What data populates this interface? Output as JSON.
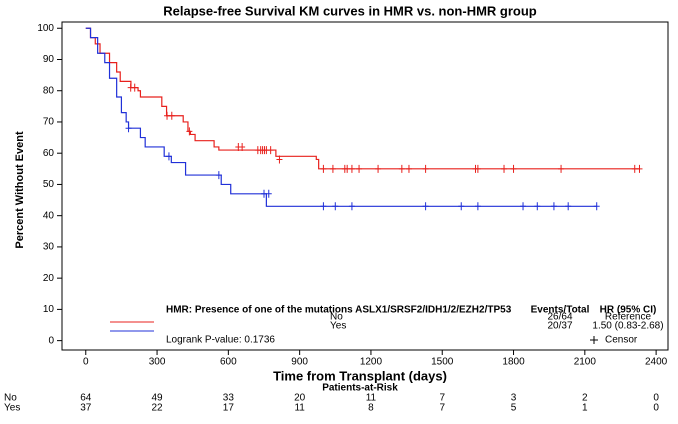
{
  "chart_data": {
    "type": "km",
    "title": "Relapse-free Survival KM curves in HMR vs. non-HMR group",
    "xlabel": "Time from Transplant (days)",
    "ylabel": "Percent Without Event",
    "xlim": [
      -100,
      2450
    ],
    "ylim": [
      -3,
      102
    ],
    "xticks": [
      0,
      300,
      600,
      900,
      1200,
      1500,
      1800,
      2100,
      2400
    ],
    "yticks": [
      0,
      10,
      20,
      30,
      40,
      50,
      60,
      70,
      80,
      90,
      100
    ],
    "legend": {
      "title": "HMR: Presence of one of the mutations ASLX1/SRSF2/IDH1/2/EZH2/TP53",
      "events_header": "Events/Total",
      "hr_header": "HR (95% CI)",
      "pvalue": "Logrank P-value: 0.1736",
      "censor": "Censor"
    },
    "series": [
      {
        "name": "No",
        "color": "#e8201c",
        "events": "26/64",
        "hr": "Reference",
        "x": [
          0,
          20,
          40,
          60,
          100,
          130,
          145,
          190,
          220,
          230,
          320,
          340,
          410,
          430,
          440,
          460,
          540,
          560,
          800,
          970,
          980,
          2330
        ],
        "values": [
          100,
          97,
          95,
          92,
          89,
          86,
          83,
          81,
          80,
          78,
          75,
          72,
          70,
          67,
          66,
          64,
          62,
          61,
          59,
          58,
          55,
          55
        ],
        "censor": {
          "x": [
            189,
            206,
            342,
            362,
            436,
            642,
            658,
            724,
            736,
            744,
            752,
            760,
            778,
            815,
            1000,
            1040,
            1090,
            1100,
            1120,
            1150,
            1230,
            1330,
            1360,
            1430,
            1640,
            1650,
            1760,
            1800,
            2000,
            2310,
            2330
          ],
          "values": [
            81,
            81,
            72,
            72,
            67,
            62,
            62,
            61,
            61,
            61,
            61,
            61,
            61,
            58,
            55,
            55,
            55,
            55,
            55,
            55,
            55,
            55,
            55,
            55,
            55,
            55,
            55,
            55,
            55,
            55,
            55
          ]
        }
      },
      {
        "name": "Yes",
        "color": "#2030d8",
        "events": "20/37",
        "hr": "1.50 (0.83-2.68)",
        "x": [
          0,
          20,
          50,
          80,
          100,
          130,
          150,
          170,
          180,
          230,
          250,
          330,
          360,
          420,
          570,
          610,
          760,
          2150
        ],
        "values": [
          100,
          97,
          92,
          89,
          84,
          78,
          73,
          70,
          68,
          65,
          62,
          59,
          57,
          53,
          50,
          47,
          43,
          43
        ],
        "censor": {
          "x": [
            180,
            350,
            560,
            750,
            770,
            1000,
            1050,
            1120,
            1430,
            1580,
            1650,
            1840,
            1900,
            1970,
            2030,
            2150
          ],
          "values": [
            68,
            59,
            53,
            47,
            47,
            43,
            43,
            43,
            43,
            43,
            43,
            43,
            43,
            43,
            43,
            43
          ]
        }
      }
    ],
    "risk_title": "Patients-at-Risk",
    "risk": [
      [
        64,
        49,
        33,
        20,
        11,
        7,
        3,
        2,
        0
      ],
      [
        37,
        22,
        17,
        11,
        8,
        7,
        5,
        1,
        0
      ]
    ]
  }
}
